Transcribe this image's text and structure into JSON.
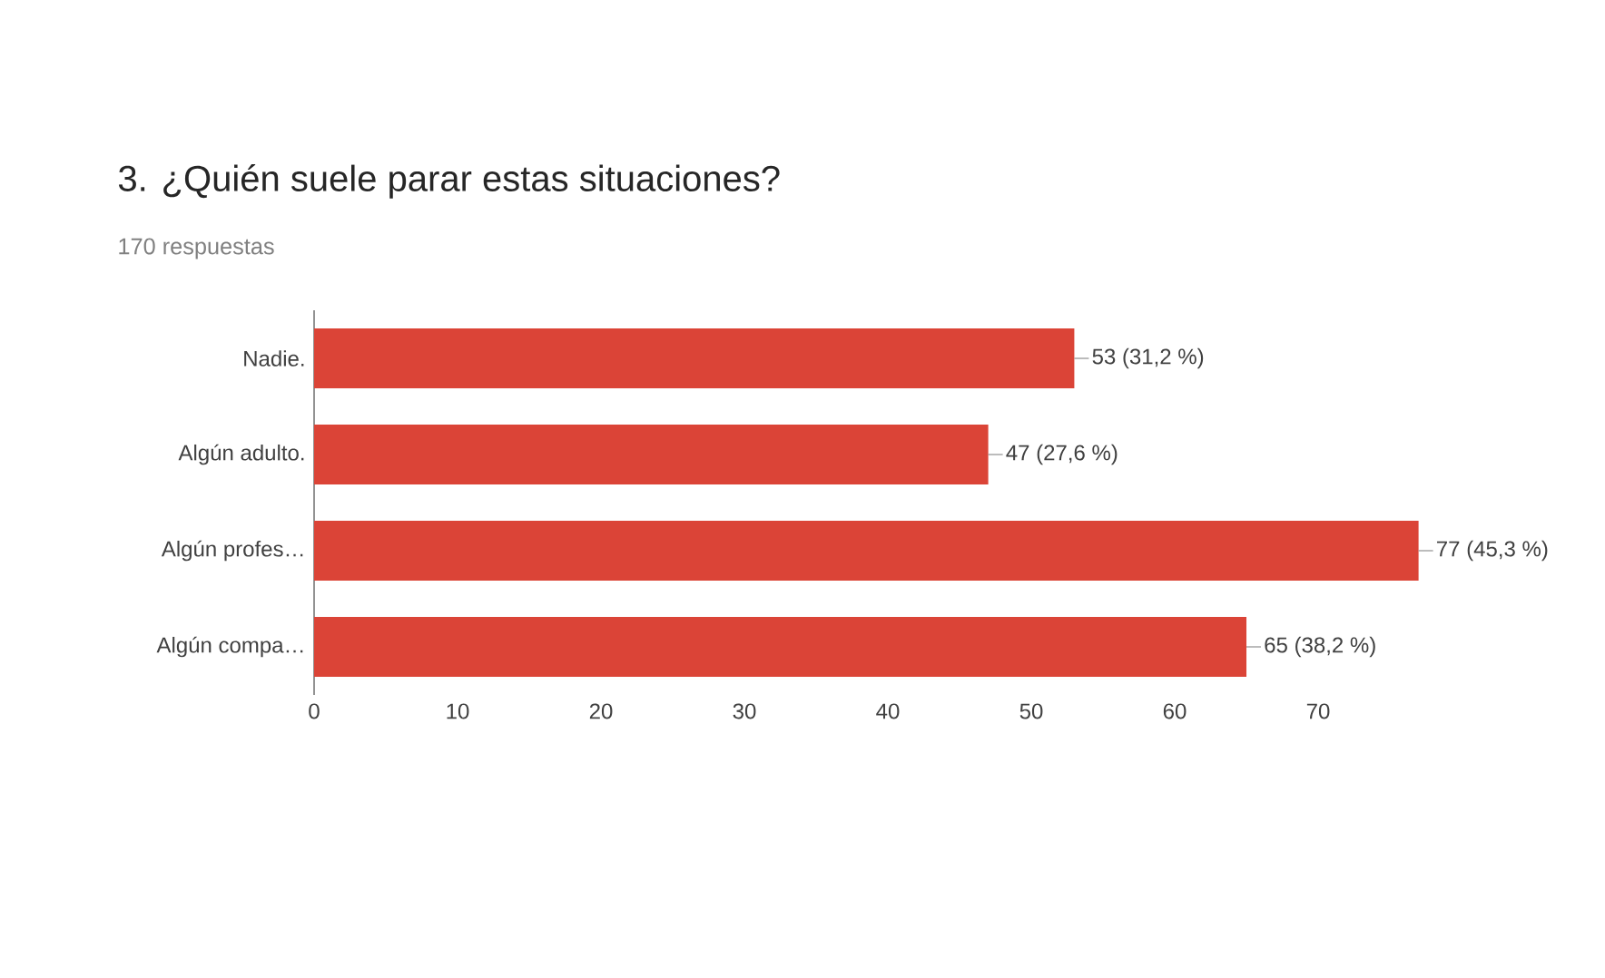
{
  "chart_data": {
    "type": "bar",
    "orientation": "horizontal",
    "title": "3. ¿Quién suele parar estas situaciones?",
    "subtitle": "170 respuestas",
    "categories": [
      "Nadie.",
      "Algún adulto.",
      "Algún profes…",
      "Algún compa…"
    ],
    "values": [
      53,
      47,
      77,
      65
    ],
    "color": "#db4437",
    "value_labels": [
      "53 (31,2 %)",
      "47 (27,6 %)",
      "77 (45,3 %)",
      "65 (38,2 %)"
    ],
    "xlim": [
      0,
      77
    ],
    "xticks": [
      0,
      10,
      20,
      30,
      40,
      50,
      60,
      70
    ]
  }
}
